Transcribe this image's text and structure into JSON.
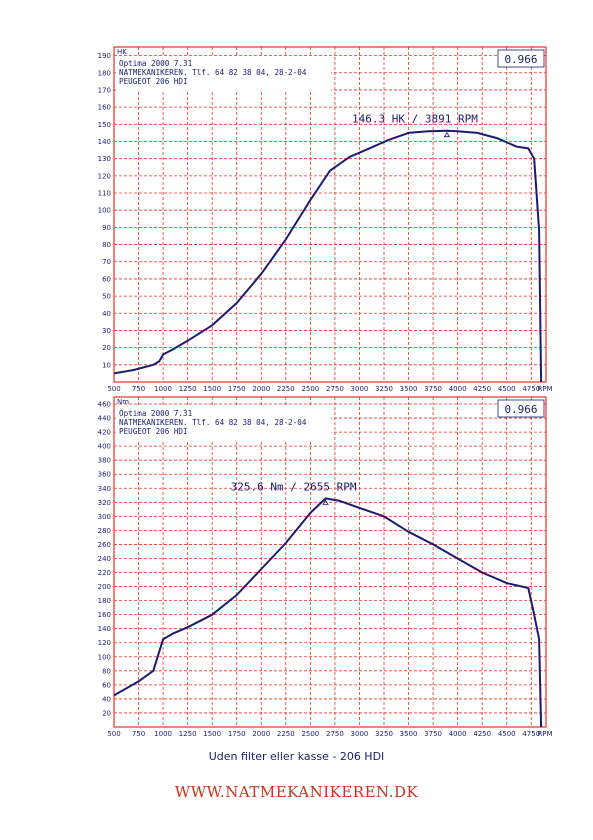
{
  "caption": "Uden filter eller kasse - 206 HDI",
  "website": "WWW.NATMEKANIKEREN.DK",
  "colors": {
    "grid": "#e8302a",
    "curve": "#1c1c6e",
    "website": "#d0301c"
  },
  "chart_data": [
    {
      "type": "line",
      "unit_label": "HK",
      "header": [
        "Optima 2000 7.31",
        "NATMEKANIKEREN. Tlf. 64 82 38 04, 28-2-04",
        "PEUGEOT 206 HDI"
      ],
      "correction": "0.966",
      "peak_label": "146.3 HK / 3891 RPM",
      "peak": {
        "x": 3891,
        "y": 146.3
      },
      "xlim": [
        500,
        4900
      ],
      "ylim": [
        0,
        195
      ],
      "x_ticks": [
        500,
        750,
        1000,
        1250,
        1500,
        1750,
        2000,
        2250,
        2500,
        2750,
        3000,
        3250,
        3500,
        3750,
        4000,
        4250,
        4500,
        4750
      ],
      "x_tick_labels": [
        "500",
        "750",
        "1000",
        "1250",
        "1500",
        "1750",
        "2000",
        "2250",
        "2500",
        "2750",
        "3000",
        "3250",
        "3500",
        "3750",
        "4000",
        "4250",
        "4500",
        "4750"
      ],
      "x_unit_label": "RPM",
      "y_ticks": [
        10,
        20,
        30,
        40,
        50,
        60,
        70,
        80,
        90,
        100,
        110,
        120,
        130,
        140,
        150,
        160,
        170,
        180,
        190
      ],
      "grid": true,
      "series": [
        {
          "x": [
            500,
            700,
            900,
            960,
            1000,
            1100,
            1250,
            1500,
            1750,
            2000,
            2250,
            2500,
            2700,
            2900,
            3100,
            3300,
            3500,
            3700,
            3891,
            4000,
            4200,
            4400,
            4600,
            4720,
            4780,
            4830,
            4850
          ],
          "y": [
            5,
            7,
            10,
            12,
            16,
            19,
            24,
            33,
            46,
            63,
            83,
            106,
            123,
            131,
            136,
            141,
            145,
            146,
            146.3,
            146,
            145,
            142,
            137,
            136,
            130,
            88,
            0
          ]
        }
      ]
    },
    {
      "type": "line",
      "unit_label": "Nm",
      "header": [
        "Optima 2000 7.31",
        "NATMEKANIKEREN. Tlf. 64 82 38 04, 28-2-04",
        "PEUGEOT 206 HDI"
      ],
      "correction": "0.966",
      "peak_label": "325.6 Nm / 2655 RPM",
      "peak": {
        "x": 2655,
        "y": 325.6
      },
      "xlim": [
        500,
        4900
      ],
      "ylim": [
        0,
        470
      ],
      "x_ticks": [
        500,
        750,
        1000,
        1250,
        1500,
        1750,
        2000,
        2250,
        2500,
        2750,
        3000,
        3250,
        3500,
        3750,
        4000,
        4250,
        4500,
        4750
      ],
      "x_tick_labels": [
        "500",
        "750",
        "1000",
        "1250",
        "1500",
        "1750",
        "2000",
        "2250",
        "2500",
        "2750",
        "3000",
        "3250",
        "3500",
        "3750",
        "4000",
        "4250",
        "4500",
        "4750"
      ],
      "x_unit_label": "RPM",
      "y_ticks": [
        20,
        40,
        60,
        80,
        100,
        120,
        140,
        160,
        180,
        200,
        220,
        240,
        260,
        280,
        300,
        320,
        340,
        360,
        380,
        400,
        420,
        440,
        460
      ],
      "grid": true,
      "series": [
        {
          "x": [
            500,
            750,
            900,
            1000,
            1100,
            1250,
            1500,
            1750,
            2000,
            2250,
            2500,
            2655,
            2800,
            3000,
            3250,
            3500,
            3750,
            4000,
            4250,
            4500,
            4720,
            4780,
            4830,
            4850
          ],
          "y": [
            45,
            65,
            80,
            125,
            133,
            142,
            160,
            188,
            225,
            262,
            305,
            325.6,
            322,
            312,
            300,
            278,
            260,
            240,
            220,
            205,
            198,
            160,
            125,
            0
          ]
        }
      ]
    }
  ]
}
